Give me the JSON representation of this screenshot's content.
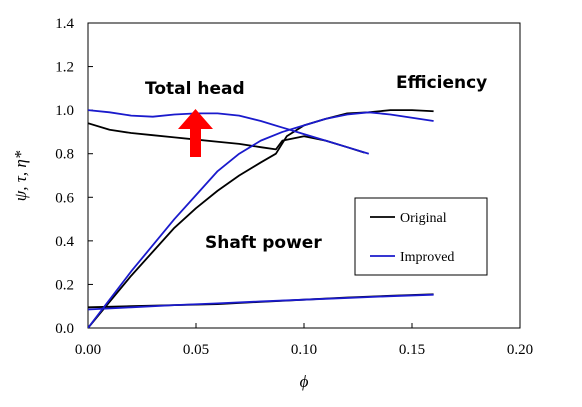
{
  "chart_data": {
    "type": "line",
    "title": "",
    "xlabel": "ϕ",
    "ylabel": "ψ, τ, η*",
    "xlim": [
      0,
      0.2
    ],
    "ylim": [
      0,
      1.4
    ],
    "x_ticks": [
      "0.00",
      "0.05",
      "0.10",
      "0.15",
      "0.20"
    ],
    "y_ticks": [
      "0.0",
      "0.2",
      "0.4",
      "0.6",
      "0.8",
      "1.0",
      "1.2",
      "1.4"
    ],
    "grid": false,
    "legend_position": "right",
    "colors": {
      "original": "#000000",
      "improved": "#1a1acc",
      "arrow": "#ff0000"
    },
    "annotations": {
      "total_head": "Total head",
      "efficiency": "Efficiency",
      "shaft_power": "Shaft power"
    },
    "series": [
      {
        "name": "Original",
        "group": "Total head",
        "points": [
          [
            0.0,
            0.94
          ],
          [
            0.01,
            0.91
          ],
          [
            0.02,
            0.895
          ],
          [
            0.03,
            0.885
          ],
          [
            0.04,
            0.875
          ],
          [
            0.05,
            0.865
          ],
          [
            0.06,
            0.855
          ],
          [
            0.07,
            0.845
          ],
          [
            0.08,
            0.83
          ],
          [
            0.087,
            0.82
          ],
          [
            0.09,
            0.86
          ],
          [
            0.1,
            0.88
          ],
          [
            0.11,
            0.86
          ],
          [
            0.12,
            0.83
          ],
          [
            0.128,
            0.805
          ]
        ]
      },
      {
        "name": "Original",
        "group": "Efficiency",
        "points": [
          [
            0.0,
            0.0
          ],
          [
            0.01,
            0.12
          ],
          [
            0.02,
            0.24
          ],
          [
            0.03,
            0.35
          ],
          [
            0.04,
            0.46
          ],
          [
            0.05,
            0.55
          ],
          [
            0.06,
            0.63
          ],
          [
            0.07,
            0.7
          ],
          [
            0.08,
            0.76
          ],
          [
            0.087,
            0.8
          ],
          [
            0.092,
            0.88
          ],
          [
            0.1,
            0.93
          ],
          [
            0.11,
            0.96
          ],
          [
            0.12,
            0.985
          ],
          [
            0.13,
            0.99
          ],
          [
            0.14,
            1.0
          ],
          [
            0.15,
            1.0
          ],
          [
            0.16,
            0.995
          ]
        ]
      },
      {
        "name": "Original",
        "group": "Shaft power",
        "points": [
          [
            0.0,
            0.095
          ],
          [
            0.02,
            0.1
          ],
          [
            0.04,
            0.105
          ],
          [
            0.06,
            0.11
          ],
          [
            0.08,
            0.12
          ],
          [
            0.1,
            0.13
          ],
          [
            0.12,
            0.14
          ],
          [
            0.14,
            0.148
          ],
          [
            0.16,
            0.155
          ]
        ]
      },
      {
        "name": "Improved",
        "group": "Total head",
        "points": [
          [
            0.0,
            1.0
          ],
          [
            0.01,
            0.99
          ],
          [
            0.02,
            0.975
          ],
          [
            0.03,
            0.97
          ],
          [
            0.04,
            0.98
          ],
          [
            0.05,
            0.985
          ],
          [
            0.06,
            0.985
          ],
          [
            0.07,
            0.975
          ],
          [
            0.08,
            0.95
          ],
          [
            0.09,
            0.92
          ],
          [
            0.1,
            0.89
          ],
          [
            0.11,
            0.86
          ],
          [
            0.12,
            0.83
          ],
          [
            0.13,
            0.8
          ]
        ]
      },
      {
        "name": "Improved",
        "group": "Efficiency",
        "points": [
          [
            0.0,
            0.0
          ],
          [
            0.01,
            0.13
          ],
          [
            0.02,
            0.26
          ],
          [
            0.03,
            0.38
          ],
          [
            0.04,
            0.5
          ],
          [
            0.05,
            0.61
          ],
          [
            0.06,
            0.72
          ],
          [
            0.07,
            0.8
          ],
          [
            0.08,
            0.86
          ],
          [
            0.09,
            0.9
          ],
          [
            0.1,
            0.93
          ],
          [
            0.11,
            0.96
          ],
          [
            0.12,
            0.98
          ],
          [
            0.13,
            0.99
          ],
          [
            0.14,
            0.98
          ],
          [
            0.15,
            0.965
          ],
          [
            0.16,
            0.95
          ]
        ]
      },
      {
        "name": "Improved",
        "group": "Shaft power",
        "points": [
          [
            0.0,
            0.085
          ],
          [
            0.02,
            0.095
          ],
          [
            0.04,
            0.105
          ],
          [
            0.06,
            0.113
          ],
          [
            0.08,
            0.122
          ],
          [
            0.1,
            0.13
          ],
          [
            0.12,
            0.138
          ],
          [
            0.14,
            0.146
          ],
          [
            0.16,
            0.153
          ]
        ]
      }
    ],
    "legend": [
      {
        "label": "Original",
        "color": "#000000"
      },
      {
        "label": "Improved",
        "color": "#1a1acc"
      }
    ]
  }
}
